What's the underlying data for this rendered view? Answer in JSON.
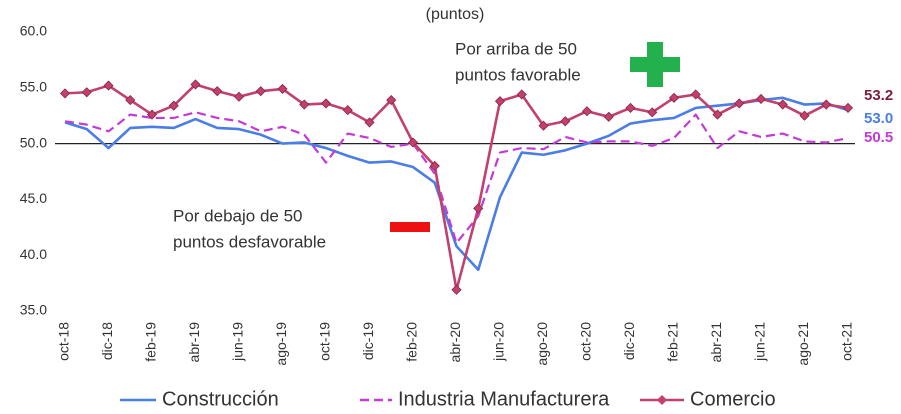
{
  "chart_data": {
    "type": "line",
    "subtitle": "(puntos)",
    "categories": [
      "oct-18",
      null,
      "dic-18",
      null,
      "feb-19",
      null,
      "abr-19",
      null,
      "jun-19",
      null,
      "ago-19",
      null,
      "oct-19",
      null,
      "dic-19",
      null,
      "feb-20",
      null,
      "abr-20",
      null,
      "jun-20",
      null,
      "ago-20",
      null,
      "oct-20",
      null,
      "dic-20",
      null,
      "feb-21",
      null,
      "abr-21",
      null,
      "jun-21",
      null,
      "ago-21",
      null,
      "oct-21"
    ],
    "series": [
      {
        "name": "Construcción",
        "color": "#4a7de6",
        "dash": false,
        "markers": false,
        "values": [
          51.9,
          51.3,
          49.6,
          51.4,
          51.5,
          51.4,
          52.2,
          51.4,
          51.3,
          50.8,
          50.0,
          50.1,
          49.6,
          48.9,
          48.3,
          48.4,
          47.9,
          46.5,
          40.8,
          38.7,
          45.2,
          49.2,
          49.0,
          49.4,
          50.0,
          50.7,
          51.8,
          52.1,
          52.3,
          53.2,
          53.4,
          53.6,
          53.9,
          54.1,
          53.5,
          53.6,
          53.0
        ],
        "value_labels": [
          null,
          null,
          null,
          null,
          null,
          null,
          null,
          null,
          null,
          null,
          null,
          null,
          null,
          null,
          null,
          null,
          null,
          null,
          null,
          null,
          null,
          null,
          null,
          null,
          null,
          null,
          null,
          null,
          null,
          null,
          null,
          null,
          null,
          null,
          null,
          null,
          "53.0"
        ]
      },
      {
        "name": "Industria Manufacturera",
        "color": "#c33bd6",
        "dash": true,
        "markers": false,
        "values": [
          52.0,
          51.7,
          51.1,
          52.6,
          52.3,
          52.3,
          52.8,
          52.3,
          52.0,
          51.1,
          51.5,
          50.8,
          48.3,
          50.9,
          50.5,
          49.7,
          50.0,
          47.3,
          41.1,
          43.5,
          49.2,
          49.6,
          49.5,
          50.6,
          50.1,
          50.2,
          50.2,
          49.8,
          50.5,
          52.6,
          49.6,
          51.1,
          50.6,
          50.9,
          50.2,
          50.1,
          50.5
        ],
        "value_labels": [
          null,
          null,
          null,
          null,
          null,
          null,
          null,
          null,
          null,
          null,
          null,
          null,
          null,
          null,
          null,
          null,
          null,
          null,
          null,
          null,
          null,
          null,
          null,
          null,
          null,
          null,
          null,
          null,
          null,
          null,
          null,
          null,
          null,
          null,
          null,
          null,
          "50.5"
        ]
      },
      {
        "name": "Comercio",
        "color": "#c2406d",
        "dash": false,
        "markers": true,
        "values": [
          54.5,
          54.6,
          55.2,
          53.9,
          52.6,
          53.4,
          55.3,
          54.7,
          54.2,
          54.7,
          54.9,
          53.5,
          53.6,
          53.0,
          51.9,
          53.9,
          50.1,
          48.0,
          36.9,
          44.2,
          53.8,
          54.4,
          51.6,
          52.0,
          52.9,
          52.4,
          53.2,
          52.8,
          54.1,
          54.4,
          52.6,
          53.6,
          54.0,
          53.5,
          52.5,
          53.5,
          53.2
        ],
        "value_labels": [
          null,
          null,
          null,
          null,
          null,
          null,
          null,
          null,
          null,
          null,
          null,
          null,
          null,
          null,
          null,
          null,
          null,
          null,
          null,
          null,
          null,
          null,
          null,
          null,
          null,
          null,
          null,
          null,
          null,
          null,
          null,
          null,
          null,
          null,
          null,
          null,
          "53.2"
        ]
      }
    ],
    "ylim": [
      35,
      60
    ],
    "yticks": [
      {
        "value": 35,
        "label": "35.0"
      },
      {
        "value": 40,
        "label": "40.0"
      },
      {
        "value": 45,
        "label": "45.0"
      },
      {
        "value": 50,
        "label": "50.0"
      },
      {
        "value": 55,
        "label": "55.0"
      },
      {
        "value": 60,
        "label": "60.0"
      }
    ],
    "reference_line": 50,
    "annotations": [
      {
        "lines": [
          "Por arriba de 50",
          "puntos favorable"
        ]
      },
      {
        "lines": [
          "Por debajo de 50",
          "puntos desfavorable"
        ]
      }
    ],
    "legend": "bottom"
  }
}
